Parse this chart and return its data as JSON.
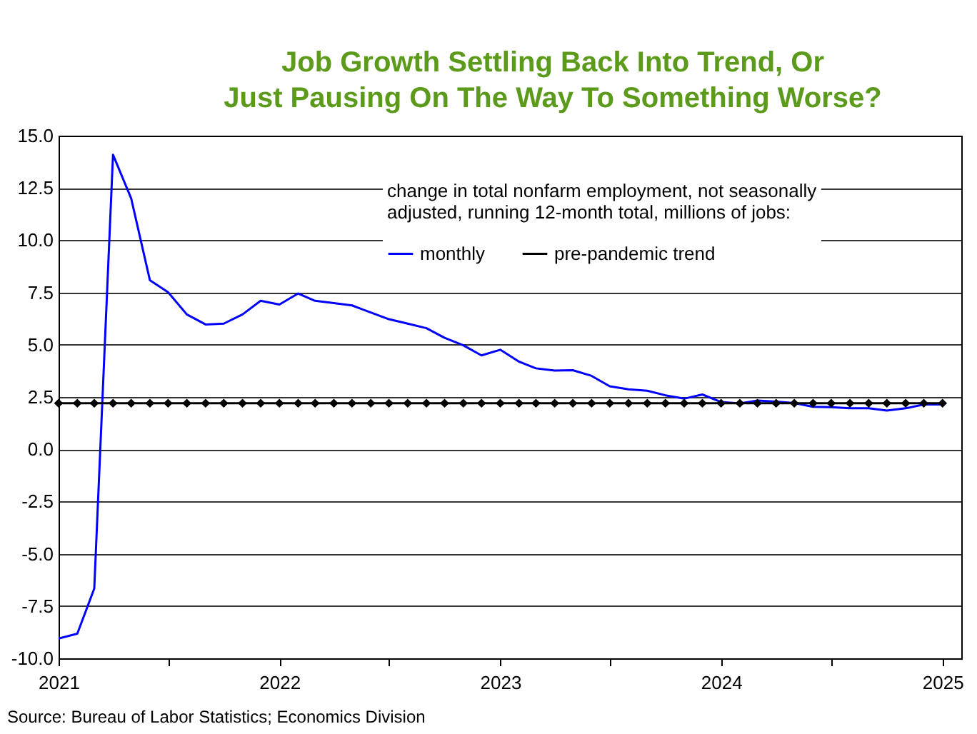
{
  "chart_data": {
    "type": "line",
    "title": "Job Growth Settling Back Into Trend, Or Just Pausing On The Way To Something Worse?",
    "legend_title": "change in total nonfarm employment, not seasonally adjusted, running 12-month total, millions of jobs:",
    "x": [
      "2021-01",
      "2021-02",
      "2021-03",
      "2021-04",
      "2021-05",
      "2021-06",
      "2021-07",
      "2021-08",
      "2021-09",
      "2021-10",
      "2021-11",
      "2021-12",
      "2022-01",
      "2022-02",
      "2022-03",
      "2022-04",
      "2022-05",
      "2022-06",
      "2022-07",
      "2022-08",
      "2022-09",
      "2022-10",
      "2022-11",
      "2022-12",
      "2023-01",
      "2023-02",
      "2023-03",
      "2023-04",
      "2023-05",
      "2023-06",
      "2023-07",
      "2023-08",
      "2023-09",
      "2023-10",
      "2023-11",
      "2023-12",
      "2024-01",
      "2024-02",
      "2024-03",
      "2024-04",
      "2024-05",
      "2024-06",
      "2024-07",
      "2024-08",
      "2024-09",
      "2024-10",
      "2024-11",
      "2024-12",
      "2025-01"
    ],
    "series": [
      {
        "name": "monthly",
        "color": "#0000ff",
        "marker": "none",
        "values": [
          -9.05,
          -8.82,
          -6.66,
          14.09,
          12.0,
          8.08,
          7.51,
          6.45,
          5.97,
          6.01,
          6.45,
          7.1,
          6.92,
          7.45,
          7.1,
          6.99,
          6.88,
          6.54,
          6.22,
          6.01,
          5.79,
          5.33,
          4.97,
          4.49,
          4.76,
          4.19,
          3.87,
          3.76,
          3.78,
          3.51,
          3.01,
          2.87,
          2.8,
          2.58,
          2.42,
          2.62,
          2.26,
          2.19,
          2.33,
          2.28,
          2.21,
          2.03,
          2.01,
          1.96,
          1.96,
          1.85,
          1.96,
          2.14,
          2.14
        ]
      },
      {
        "name": "pre-pandemic trend",
        "color": "#000000",
        "marker": "diamond",
        "values": [
          2.2,
          2.2,
          2.2,
          2.2,
          2.2,
          2.2,
          2.2,
          2.2,
          2.2,
          2.2,
          2.2,
          2.2,
          2.2,
          2.2,
          2.2,
          2.2,
          2.2,
          2.2,
          2.2,
          2.2,
          2.2,
          2.2,
          2.2,
          2.2,
          2.2,
          2.2,
          2.2,
          2.2,
          2.2,
          2.2,
          2.2,
          2.2,
          2.2,
          2.2,
          2.2,
          2.2,
          2.2,
          2.2,
          2.2,
          2.2,
          2.2,
          2.2,
          2.2,
          2.2,
          2.2,
          2.2,
          2.2,
          2.2,
          2.2
        ]
      }
    ],
    "xlim": [
      "2021-01",
      "2025-02"
    ],
    "xticks": [
      {
        "value": "2021-01",
        "label": "2021"
      },
      {
        "value": "2021-07",
        "label": null
      },
      {
        "value": "2022-01",
        "label": "2022"
      },
      {
        "value": "2022-07",
        "label": null
      },
      {
        "value": "2023-01",
        "label": "2023"
      },
      {
        "value": "2023-07",
        "label": null
      },
      {
        "value": "2024-01",
        "label": "2024"
      },
      {
        "value": "2024-07",
        "label": null
      },
      {
        "value": "2025-01",
        "label": "2025"
      }
    ],
    "ylim": [
      -10,
      15
    ],
    "yticks": [
      {
        "value": -10,
        "label": "-10.0"
      },
      {
        "value": -7.5,
        "label": "-7.5"
      },
      {
        "value": -5,
        "label": "-5.0"
      },
      {
        "value": -2.5,
        "label": "-2.5"
      },
      {
        "value": 0,
        "label": "0.0"
      },
      {
        "value": 2.5,
        "label": "2.5"
      },
      {
        "value": 5,
        "label": "5.0"
      },
      {
        "value": 7.5,
        "label": "7.5"
      },
      {
        "value": 10,
        "label": "10.0"
      },
      {
        "value": 12.5,
        "label": "12.5"
      },
      {
        "value": 15,
        "label": "15.0"
      }
    ],
    "grid": "y",
    "legend": "top right",
    "line_style": "solid",
    "annotations": [
      "Source: Bureau of Labor Statistics; Economics Division"
    ]
  }
}
